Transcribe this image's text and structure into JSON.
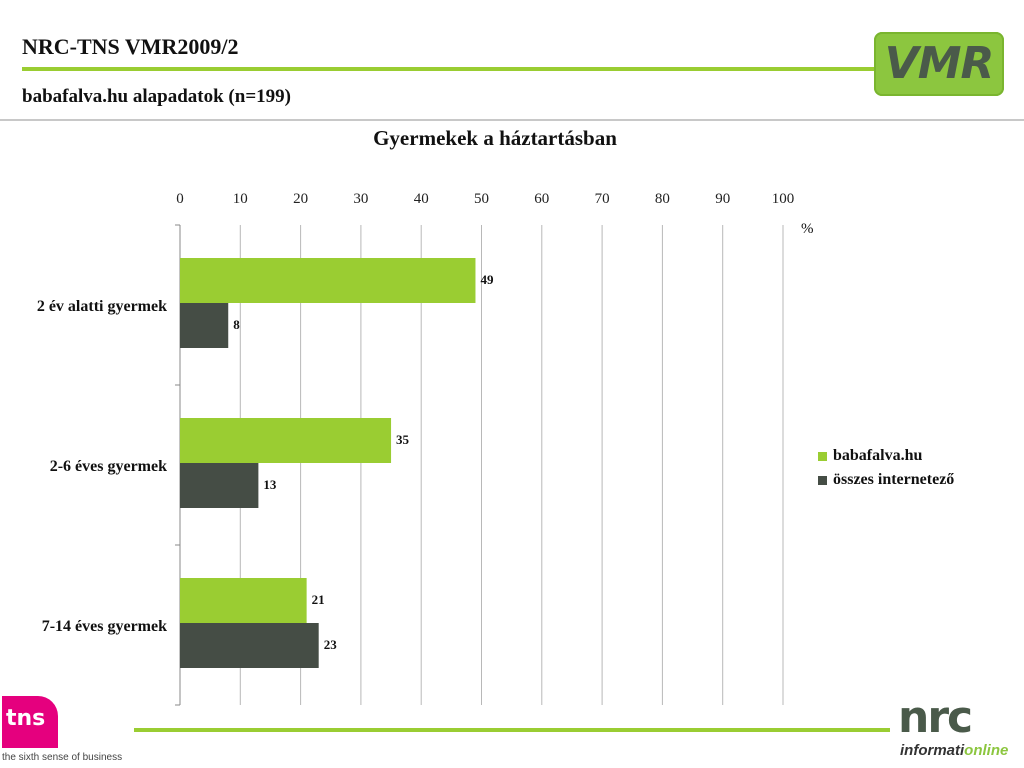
{
  "header": {
    "title": "NRC-TNS VMR2009/2",
    "subtitle": "babafalva.hu alapadatok (n=199)",
    "logo_text": "VMR"
  },
  "footer": {
    "tns_logo": "tns",
    "tns_tagline": "the sixth sense of business",
    "nrc_logo": "nrc",
    "nrc_sub_a": "informati",
    "nrc_sub_b": "online"
  },
  "colors": {
    "accent_green": "#9acd32",
    "series_1": "#9acd32",
    "series_2": "#454d45"
  },
  "chart_data": {
    "type": "bar",
    "orientation": "horizontal",
    "title": "Gyermekek a háztartásban",
    "unit": "%",
    "xlim": [
      0,
      100
    ],
    "ticks": [
      "0",
      "10",
      "20",
      "30",
      "40",
      "50",
      "60",
      "70",
      "80",
      "90",
      "100"
    ],
    "categories": [
      "2 év alatti gyermek",
      "2-6 éves gyermek",
      "7-14 éves gyermek"
    ],
    "series": [
      {
        "name": "babafalva.hu",
        "values": [
          49,
          35,
          21
        ]
      },
      {
        "name": "összes internetező",
        "values": [
          8,
          13,
          23
        ]
      }
    ],
    "legend_position": "right",
    "grid": true
  }
}
